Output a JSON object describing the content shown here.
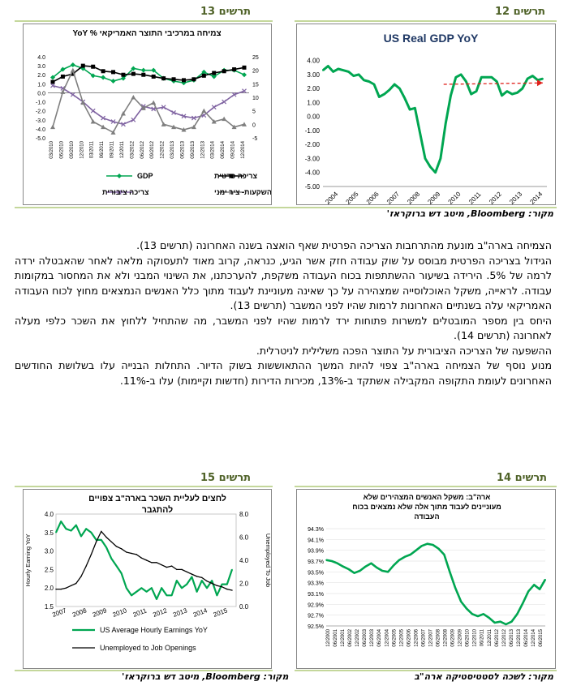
{
  "figures": {
    "fig12": {
      "label": "תרשים 12"
    },
    "fig13": {
      "label": "תרשים 13"
    },
    "fig14": {
      "label": "תרשים 14"
    },
    "fig15": {
      "label": "תרשים 15"
    }
  },
  "sources": {
    "top": "מקור: Bloomberg, מיטב דש ברוקראז'",
    "bottom_left": "מקור: Bloomberg, מיטב דש ברוקראז'",
    "bottom_right": "מקור: לשכה לסטטיסטיקה ארה\"ב"
  },
  "body_paragraphs": [
    "הצמיחה בארה\"ב מונעת מהתרחבות הצריכה הפרטית שאף הואצה בשנה האחרונה (תרשים 13).",
    "הגידול בצריכה הפרטית מבוסס על שוק עבודה חזק אשר הגיע, כנראה, קרוב מאוד לתעסוקה מלאה לאחר שהאבטלה ירדה לרמה של 5%. הירידה בשיעור ההשתתפות בכוח העבודה משקפת, להערכתנו, את השינוי המבני ולא את המחסור במקומות עבודה. לראייה, משקל האוכלוסייה שמצהירה על כך שאינה מעוניינת לעבוד מתוך כלל האנשים הנמצאים מחוץ לכוח העבודה האמריקאי עלה בשנתיים האחרונות לרמות שהיו לפני המשבר (תרשים 13).",
    "היחס בין מספר המובטלים למשרות פתוחות ירד לרמות שהיו לפני המשבר, מה שהתחיל ללחוץ את השכר כלפי מעלה לאחרונה (תרשים 14).",
    "ההשפעה של הצריכה הציבורית על התוצר הפכה משלילית לניטרלית.",
    "מנוע נוסף של הצמיחה בארה\"ב צפוי להיות המשך ההתאוששות בשוק הדיור. התחלות הבנייה עלו בשלושת החודשים האחרונים לעומת התקופה המקבילה אשתקד ב-13%, מכירות הדירות (חדשות וקיימות) עלו ב-11%."
  ],
  "chart_data": [
    {
      "id": "fig12",
      "type": "line",
      "title": "US Real GDP YoY",
      "color": "#00a651",
      "trend_color": "#e0201b",
      "ylim": [
        -5,
        4.5
      ],
      "yticks": [
        "4.00",
        "3.00",
        "2.00",
        "1.00",
        "0.00",
        "-1.00",
        "-2.00",
        "-3.00",
        "-4.00",
        "-5.00"
      ],
      "xticks": [
        "2004",
        "2005",
        "2006",
        "2007",
        "2008",
        "2009",
        "2010",
        "2011",
        "2012",
        "2013",
        "2014"
      ],
      "x": [
        2004.0,
        2004.25,
        2004.5,
        2004.75,
        2005.0,
        2005.25,
        2005.5,
        2005.75,
        2006.0,
        2006.25,
        2006.5,
        2006.75,
        2007.0,
        2007.25,
        2007.5,
        2007.75,
        2008.0,
        2008.25,
        2008.5,
        2008.75,
        2009.0,
        2009.25,
        2009.5,
        2009.75,
        2010.0,
        2010.25,
        2010.5,
        2010.75,
        2011.0,
        2011.25,
        2011.5,
        2011.75,
        2012.0,
        2012.25,
        2012.5,
        2012.75,
        2013.0,
        2013.25,
        2013.5,
        2013.75,
        2014.0,
        2014.25,
        2014.5,
        2014.75
      ],
      "values": [
        3.3,
        3.6,
        3.2,
        3.4,
        3.3,
        3.2,
        2.9,
        3.0,
        2.6,
        2.5,
        2.3,
        1.4,
        1.6,
        1.9,
        2.3,
        2.0,
        1.3,
        0.5,
        0.6,
        -1.2,
        -3.0,
        -3.6,
        -4.0,
        -3.0,
        -0.5,
        1.5,
        2.8,
        3.0,
        2.5,
        1.6,
        1.8,
        2.8,
        2.8,
        2.8,
        2.5,
        1.5,
        1.8,
        1.6,
        1.7,
        2.0,
        2.7,
        2.9,
        2.6,
        2.7
      ],
      "trend": {
        "from": [
          2009.9,
          2.3
        ],
        "to": [
          2014.75,
          2.4
        ]
      }
    },
    {
      "id": "fig13",
      "type": "line",
      "title": "צמיחה במרכיבי התוצר האמריקאי % YoY",
      "ylim_left": [
        -5,
        4
      ],
      "ylim_right": [
        -5,
        25
      ],
      "yticks_left": [
        "4.0",
        "3.0",
        "2.0",
        "1.0",
        "0.0",
        "-1.0",
        "-2.0",
        "-3.0",
        "-4.0",
        "-5.0"
      ],
      "yticks_right": [
        "25",
        "20",
        "15",
        "10",
        "5",
        "0",
        "-5"
      ],
      "xticks": [
        "03/2010",
        "06/2010",
        "09/2010",
        "12/2010",
        "03/2011",
        "06/2011",
        "09/2011",
        "12/2011",
        "03/2012",
        "06/2012",
        "09/2012",
        "12/2012",
        "03/2013",
        "06/2013",
        "09/2013",
        "12/2013",
        "03/2014",
        "06/2014",
        "09/2014",
        "12/2014"
      ],
      "series": [
        {
          "name": "GDP",
          "axis": "left",
          "color": "#00a651",
          "marker": "diamond",
          "values": [
            1.7,
            2.6,
            3.1,
            2.7,
            1.9,
            1.7,
            1.3,
            1.6,
            2.7,
            2.5,
            2.5,
            1.6,
            1.3,
            1.1,
            1.4,
            2.3,
            1.8,
            2.5,
            2.5,
            2.0
          ]
        },
        {
          "name": "צריכה פרטית",
          "axis": "left",
          "color": "#000000",
          "marker": "square",
          "values": [
            1.2,
            1.8,
            2.1,
            3.0,
            2.9,
            2.4,
            2.3,
            2.0,
            2.1,
            2.0,
            1.8,
            1.6,
            1.5,
            1.4,
            1.5,
            1.9,
            2.2,
            2.4,
            2.6,
            2.8
          ]
        },
        {
          "name": "צריכה ציבורית",
          "axis": "left",
          "color": "#8064a2",
          "marker": "x",
          "values": [
            0.8,
            0.5,
            -0.2,
            -1.0,
            -2.0,
            -2.8,
            -3.2,
            -3.5,
            -3.0,
            -1.5,
            -1.8,
            -1.6,
            -2.2,
            -2.6,
            -2.8,
            -2.5,
            -1.6,
            -1.0,
            -0.2,
            0.2
          ]
        },
        {
          "name": "השקעות- ציר ימני",
          "axis": "right",
          "color": "#7f7f7f",
          "marker": "triangle",
          "values": [
            -1,
            12,
            20,
            8,
            1,
            -1,
            -3,
            4,
            10,
            6,
            8,
            0,
            -1,
            -2,
            -1,
            5,
            1,
            2,
            -1,
            0
          ]
        }
      ]
    },
    {
      "id": "fig14",
      "type": "line",
      "title": "ארה\"ב: משקל האנשים המצהירים שלא מעוניינים לעבוד מתוך אלה שלא נמצאים בכוח העבודה",
      "color": "#00a651",
      "ylim": [
        92.5,
        94.3
      ],
      "yticks": [
        "94.3%",
        "94.1%",
        "93.9%",
        "93.7%",
        "93.5%",
        "93.3%",
        "93.1%",
        "92.9%",
        "92.7%",
        "92.5%"
      ],
      "xticks": [
        "12/2000",
        "06/2001",
        "12/2001",
        "06/2002",
        "12/2002",
        "06/2003",
        "12/2003",
        "06/2004",
        "12/2004",
        "06/2005",
        "12/2005",
        "06/2006",
        "12/2006",
        "06/2007",
        "12/2007",
        "06/2008",
        "12/2008",
        "06/2009",
        "12/2009",
        "06/2010",
        "12/2010",
        "06/2011",
        "12/2011",
        "06/2012",
        "12/2012",
        "06/2013",
        "12/2013",
        "06/2014",
        "12/2014",
        "06/2015"
      ],
      "values": [
        93.72,
        93.7,
        93.66,
        93.6,
        93.55,
        93.48,
        93.52,
        93.6,
        93.66,
        93.58,
        93.52,
        93.5,
        93.62,
        93.72,
        93.78,
        93.82,
        93.9,
        93.98,
        94.02,
        94.0,
        93.93,
        93.82,
        93.5,
        93.2,
        92.95,
        92.82,
        92.72,
        92.68,
        92.72,
        92.65,
        92.56,
        92.58,
        92.53,
        92.58,
        92.72,
        92.92,
        93.14,
        93.26,
        93.18,
        93.36
      ]
    },
    {
      "id": "fig15",
      "type": "line",
      "title": "לחצים לעליית השכר בארה\"ב צפויים להתגבר",
      "ylim_left": [
        1.5,
        4.0
      ],
      "ylim_right": [
        0,
        8
      ],
      "yticks_left": [
        "4.0",
        "3.5",
        "3.0",
        "2.5",
        "2.0",
        "1.5"
      ],
      "yticks_right": [
        "8.0",
        "6.0",
        "4.0",
        "2.0",
        "0.0"
      ],
      "ylabel_left": "Hourly Earning YoY",
      "ylabel_right": "Unemployed To Job",
      "xticks": [
        "2007",
        "2008",
        "2009",
        "2010",
        "2011",
        "2012",
        "2013",
        "2014",
        "2015"
      ],
      "x": [
        2007.0,
        2007.25,
        2007.5,
        2007.75,
        2008.0,
        2008.25,
        2008.5,
        2008.75,
        2009.0,
        2009.25,
        2009.5,
        2009.75,
        2010.0,
        2010.25,
        2010.5,
        2010.75,
        2011.0,
        2011.25,
        2011.5,
        2011.75,
        2012.0,
        2012.25,
        2012.5,
        2012.75,
        2013.0,
        2013.25,
        2013.5,
        2013.75,
        2014.0,
        2014.25,
        2014.5,
        2014.75,
        2015.0,
        2015.25,
        2015.5,
        2015.75
      ],
      "series": [
        {
          "name": "US Average Hourly Earnings YoY",
          "axis": "left",
          "color": "#00a651",
          "values": [
            3.5,
            3.8,
            3.6,
            3.55,
            3.7,
            3.4,
            3.6,
            3.5,
            3.3,
            3.3,
            3.1,
            2.8,
            2.6,
            2.4,
            2.0,
            1.8,
            1.9,
            2.0,
            1.9,
            2.0,
            1.7,
            2.0,
            1.8,
            1.8,
            2.2,
            2.0,
            2.1,
            2.3,
            1.9,
            2.2,
            2.0,
            2.2,
            1.8,
            2.1,
            2.1,
            2.5
          ]
        },
        {
          "name": "Unemployed to Job Openings",
          "axis": "right",
          "color": "#000000",
          "values": [
            1.5,
            1.5,
            1.6,
            1.8,
            2.0,
            2.6,
            3.5,
            4.5,
            5.6,
            6.5,
            6.0,
            5.6,
            5.2,
            5.0,
            4.7,
            4.6,
            4.5,
            4.2,
            4.0,
            3.8,
            3.8,
            3.6,
            3.4,
            3.5,
            3.2,
            3.2,
            3.0,
            2.8,
            2.6,
            2.5,
            2.2,
            2.0,
            1.8,
            1.7,
            1.5,
            1.4
          ]
        }
      ]
    }
  ]
}
